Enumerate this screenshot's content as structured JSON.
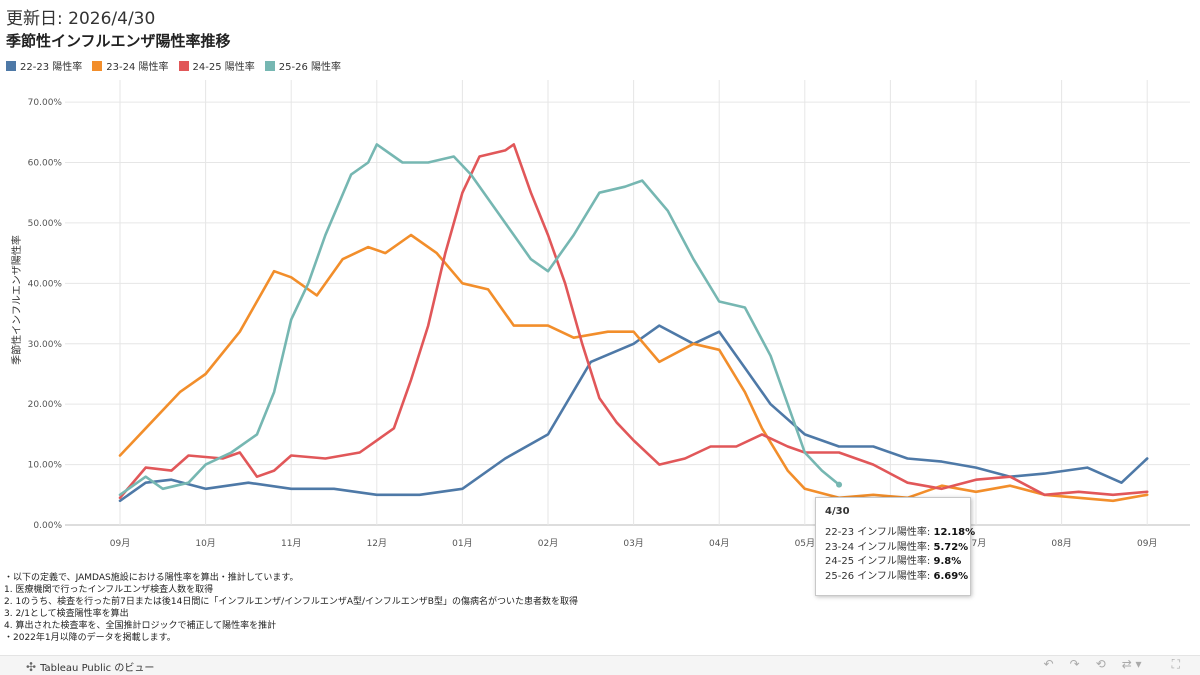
{
  "header": {
    "updated": "更新日: 2026/4/30",
    "title": "季節性インフルエンザ陽性率推移"
  },
  "chart_data": {
    "type": "line",
    "ylabel": "季節性インフルエンザ陽性率",
    "ylim": [
      0,
      72
    ],
    "yticks": [
      "0.00%",
      "10.00%",
      "20.00%",
      "30.00%",
      "40.00%",
      "50.00%",
      "60.00%",
      "70.00%"
    ],
    "x_tick_labels": [
      "09月",
      "10月",
      "11月",
      "12月",
      "01月",
      "02月",
      "03月",
      "04月",
      "05月",
      "06月",
      "07月",
      "08月",
      "09月"
    ],
    "x_unit": "month index from September (0 = 09月 start, 12 = next 09月 start)",
    "series": [
      {
        "name": "22-23 陽性率",
        "color": "#4e79a7",
        "points": [
          [
            0,
            4
          ],
          [
            0.3,
            7
          ],
          [
            0.6,
            7.5
          ],
          [
            1,
            6
          ],
          [
            1.5,
            7
          ],
          [
            2,
            6
          ],
          [
            2.5,
            6
          ],
          [
            3,
            5
          ],
          [
            3.5,
            5
          ],
          [
            4,
            6
          ],
          [
            4.5,
            11
          ],
          [
            5,
            15
          ],
          [
            5.5,
            27
          ],
          [
            6,
            30
          ],
          [
            6.3,
            33
          ],
          [
            6.7,
            30
          ],
          [
            7,
            32
          ],
          [
            7.3,
            26
          ],
          [
            7.6,
            20
          ],
          [
            8,
            15
          ],
          [
            8.4,
            13
          ],
          [
            8.8,
            13
          ],
          [
            9.2,
            11
          ],
          [
            9.6,
            10.5
          ],
          [
            10,
            9.5
          ],
          [
            10.4,
            8
          ],
          [
            10.8,
            8.5
          ],
          [
            11.3,
            9.5
          ],
          [
            11.7,
            7
          ],
          [
            12,
            11
          ]
        ]
      },
      {
        "name": "23-24 陽性率",
        "color": "#f28e2b",
        "points": [
          [
            0,
            11.5
          ],
          [
            0.3,
            16
          ],
          [
            0.7,
            22
          ],
          [
            1,
            25
          ],
          [
            1.4,
            32
          ],
          [
            1.8,
            42
          ],
          [
            2,
            41
          ],
          [
            2.3,
            38
          ],
          [
            2.6,
            44
          ],
          [
            2.9,
            46
          ],
          [
            3.1,
            45
          ],
          [
            3.4,
            48
          ],
          [
            3.7,
            45
          ],
          [
            4,
            40
          ],
          [
            4.3,
            39
          ],
          [
            4.6,
            33
          ],
          [
            5,
            33
          ],
          [
            5.3,
            31
          ],
          [
            5.7,
            32
          ],
          [
            6,
            32
          ],
          [
            6.3,
            27
          ],
          [
            6.7,
            30
          ],
          [
            7,
            29
          ],
          [
            7.3,
            22
          ],
          [
            7.5,
            16
          ],
          [
            7.8,
            9
          ],
          [
            8,
            6
          ],
          [
            8.4,
            4.5
          ],
          [
            8.8,
            5
          ],
          [
            9.2,
            4.5
          ],
          [
            9.6,
            6.5
          ],
          [
            10,
            5.5
          ],
          [
            10.4,
            6.5
          ],
          [
            10.8,
            5
          ],
          [
            11.2,
            4.5
          ],
          [
            11.6,
            4
          ],
          [
            12,
            5
          ]
        ]
      },
      {
        "name": "24-25 陽性率",
        "color": "#e15759",
        "points": [
          [
            0,
            4.5
          ],
          [
            0.3,
            9.5
          ],
          [
            0.6,
            9
          ],
          [
            0.8,
            11.5
          ],
          [
            1.2,
            11
          ],
          [
            1.4,
            12
          ],
          [
            1.6,
            8
          ],
          [
            1.8,
            9
          ],
          [
            2,
            11.5
          ],
          [
            2.4,
            11
          ],
          [
            2.8,
            12
          ],
          [
            3,
            14
          ],
          [
            3.2,
            16
          ],
          [
            3.4,
            24
          ],
          [
            3.6,
            33
          ],
          [
            3.8,
            45
          ],
          [
            4,
            55
          ],
          [
            4.2,
            61
          ],
          [
            4.5,
            62
          ],
          [
            4.6,
            63
          ],
          [
            4.8,
            55
          ],
          [
            5,
            48
          ],
          [
            5.2,
            40
          ],
          [
            5.4,
            30
          ],
          [
            5.6,
            21
          ],
          [
            5.8,
            17
          ],
          [
            6,
            14
          ],
          [
            6.3,
            10
          ],
          [
            6.6,
            11
          ],
          [
            6.9,
            13
          ],
          [
            7.2,
            13
          ],
          [
            7.5,
            15
          ],
          [
            7.8,
            13
          ],
          [
            8,
            12
          ],
          [
            8.4,
            12
          ],
          [
            8.8,
            10
          ],
          [
            9.2,
            7
          ],
          [
            9.6,
            6
          ],
          [
            10,
            7.5
          ],
          [
            10.4,
            8
          ],
          [
            10.8,
            5
          ],
          [
            11.2,
            5.5
          ],
          [
            11.6,
            5
          ],
          [
            12,
            5.5
          ]
        ]
      },
      {
        "name": "25-26 陽性率",
        "color": "#76b7b2",
        "points": [
          [
            0,
            5
          ],
          [
            0.3,
            8
          ],
          [
            0.5,
            6
          ],
          [
            0.8,
            7
          ],
          [
            1,
            10
          ],
          [
            1.3,
            12
          ],
          [
            1.6,
            15
          ],
          [
            1.8,
            22
          ],
          [
            2,
            34
          ],
          [
            2.2,
            40
          ],
          [
            2.4,
            48
          ],
          [
            2.7,
            58
          ],
          [
            2.9,
            60
          ],
          [
            3,
            63
          ],
          [
            3.3,
            60
          ],
          [
            3.6,
            60
          ],
          [
            3.9,
            61
          ],
          [
            4.1,
            58
          ],
          [
            4.4,
            52
          ],
          [
            4.6,
            48
          ],
          [
            4.8,
            44
          ],
          [
            5,
            42
          ],
          [
            5.3,
            48
          ],
          [
            5.6,
            55
          ],
          [
            5.9,
            56
          ],
          [
            6.1,
            57
          ],
          [
            6.4,
            52
          ],
          [
            6.7,
            44
          ],
          [
            7,
            37
          ],
          [
            7.3,
            36
          ],
          [
            7.6,
            28
          ],
          [
            7.8,
            20
          ],
          [
            8,
            12
          ],
          [
            8.2,
            9
          ],
          [
            8.4,
            6.69
          ]
        ]
      }
    ]
  },
  "legend": [
    {
      "label": "22-23 陽性率",
      "color": "#4e79a7"
    },
    {
      "label": "23-24 陽性率",
      "color": "#f28e2b"
    },
    {
      "label": "24-25 陽性率",
      "color": "#e15759"
    },
    {
      "label": "25-26 陽性率",
      "color": "#76b7b2"
    }
  ],
  "tooltip": {
    "date": "4/30",
    "rows": [
      {
        "label": "22-23 インフル陽性率: ",
        "value": "12.18%"
      },
      {
        "label": "23-24 インフル陽性率: ",
        "value": "5.72%"
      },
      {
        "label": "24-25 インフル陽性率: ",
        "value": "9.8%"
      },
      {
        "label": "25-26 インフル陽性率: ",
        "value": "6.69%"
      }
    ]
  },
  "notes": [
    "・以下の定義で、JAMDAS施設における陽性率を算出・推計しています。",
    "1. 医療機関で行ったインフルエンザ検査人数を取得",
    "2. 1のうち、検査を行った前7日または後14日間に「インフルエンザ/インフルエンザA型/インフルエンザB型」の傷病名がついた患者数を取得",
    "3. 2/1として検査陽性率を算出",
    "4. 算出された検査率を、全国推計ロジックで補正して陽性率を推計",
    "・2022年1月以降のデータを掲載します。"
  ],
  "footer": {
    "brand": "Tableau Public のビュー",
    "brand_icon": "tableau-logo-icon",
    "icons": [
      "undo-icon",
      "redo-icon",
      "revert-icon",
      "share-icon",
      "fullscreen-icon"
    ]
  }
}
